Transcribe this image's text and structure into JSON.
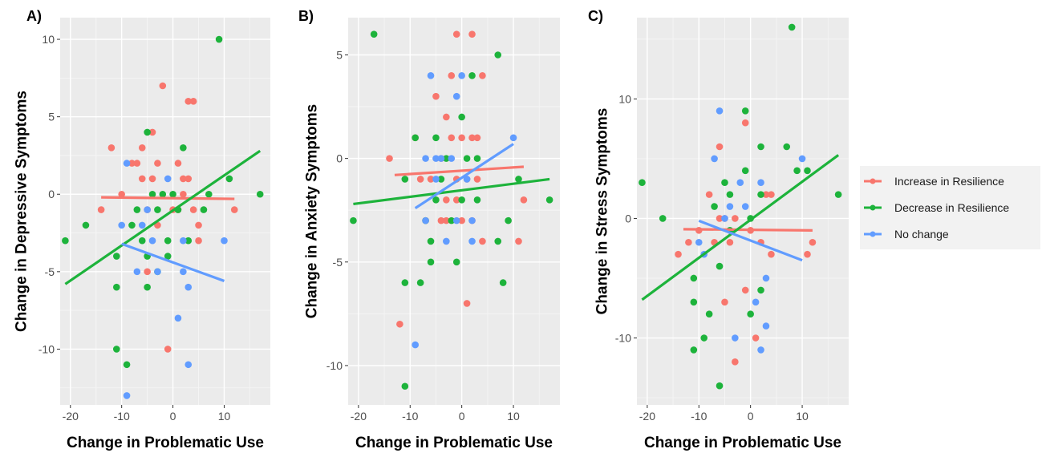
{
  "legend": {
    "entries": [
      {
        "label": "Increase in Resilience",
        "color": "#F8766D"
      },
      {
        "label": "Decrease in Resilience",
        "color": "#1DB33B"
      },
      {
        "label": "No change",
        "color": "#619CFF"
      }
    ]
  },
  "chart_data": [
    {
      "type": "scatter",
      "panel_label": "A)",
      "title": "",
      "xlabel": "Change in Problematic Use",
      "ylabel": "Change in Depressive Symptoms",
      "xlim": [
        -22,
        19
      ],
      "ylim": [
        -13.6,
        11.4
      ],
      "xticks": [
        -20,
        -10,
        0,
        10
      ],
      "yticks": [
        10,
        5,
        0,
        -5,
        -10
      ],
      "grid": true,
      "legend_position": "right",
      "series": [
        {
          "name": "Increase in Resilience",
          "color": "#F8766D",
          "points": [
            [
              -14,
              -1
            ],
            [
              -12,
              3
            ],
            [
              -10,
              0
            ],
            [
              -8,
              2
            ],
            [
              -7,
              2
            ],
            [
              -6,
              3
            ],
            [
              -6,
              1
            ],
            [
              -5,
              -1
            ],
            [
              -4,
              4
            ],
            [
              -4,
              1
            ],
            [
              -3,
              2
            ],
            [
              -2,
              7
            ],
            [
              -1,
              -10
            ],
            [
              0,
              -1
            ],
            [
              1,
              2
            ],
            [
              1,
              -1
            ],
            [
              2,
              1
            ],
            [
              2,
              0
            ],
            [
              3,
              1
            ],
            [
              3,
              6
            ],
            [
              4,
              6
            ],
            [
              4,
              -1
            ],
            [
              5,
              -2
            ],
            [
              5,
              -3
            ],
            [
              12,
              -1
            ],
            [
              -3,
              -2
            ],
            [
              -5,
              -5
            ]
          ]
        },
        {
          "name": "Decrease in Resilience",
          "color": "#1DB33B",
          "points": [
            [
              -21,
              -3
            ],
            [
              -17,
              -2
            ],
            [
              -11,
              -4
            ],
            [
              -11,
              -6
            ],
            [
              -11,
              -10
            ],
            [
              -9,
              -11
            ],
            [
              -8,
              -2
            ],
            [
              -7,
              -1
            ],
            [
              -6,
              -3
            ],
            [
              -5,
              -4
            ],
            [
              -5,
              4
            ],
            [
              -5,
              -6
            ],
            [
              -4,
              0
            ],
            [
              -3,
              -5
            ],
            [
              -3,
              -1
            ],
            [
              -1,
              -3
            ],
            [
              -1,
              -4
            ],
            [
              0,
              0
            ],
            [
              1,
              -1
            ],
            [
              2,
              3
            ],
            [
              3,
              -3
            ],
            [
              6,
              -1
            ],
            [
              7,
              0
            ],
            [
              9,
              10
            ],
            [
              11,
              1
            ],
            [
              17,
              0
            ],
            [
              -2,
              0
            ]
          ]
        },
        {
          "name": "No change",
          "color": "#619CFF",
          "points": [
            [
              -9,
              2
            ],
            [
              -10,
              -2
            ],
            [
              -9,
              -13
            ],
            [
              -7,
              -5
            ],
            [
              -6,
              -2
            ],
            [
              -5,
              -1
            ],
            [
              -4,
              -3
            ],
            [
              -3,
              -5
            ],
            [
              -1,
              1
            ],
            [
              1,
              -8
            ],
            [
              2,
              -3
            ],
            [
              2,
              -5
            ],
            [
              3,
              -6
            ],
            [
              3,
              -11
            ],
            [
              10,
              -3
            ]
          ]
        }
      ],
      "fits": [
        {
          "series": "Increase in Resilience",
          "x": [
            -14,
            12
          ],
          "y": [
            -0.2,
            -0.3
          ]
        },
        {
          "series": "Decrease in Resilience",
          "x": [
            -21,
            17
          ],
          "y": [
            -5.8,
            2.8
          ]
        },
        {
          "series": "No change",
          "x": [
            -10,
            10
          ],
          "y": [
            -3.2,
            -5.6
          ]
        }
      ]
    },
    {
      "type": "scatter",
      "panel_label": "B)",
      "title": "",
      "xlabel": "Change in Problematic Use",
      "ylabel": "Change in Anxiety Symptoms",
      "xlim": [
        -22,
        19
      ],
      "ylim": [
        -11.9,
        6.8
      ],
      "xticks": [
        -20,
        -10,
        0,
        10
      ],
      "yticks": [
        5,
        0,
        -5,
        -10
      ],
      "grid": true,
      "legend_position": "right",
      "series": [
        {
          "name": "Increase in Resilience",
          "color": "#F8766D",
          "points": [
            [
              -14,
              0
            ],
            [
              -12,
              -8
            ],
            [
              -9,
              1
            ],
            [
              -8,
              -1
            ],
            [
              -7,
              -3
            ],
            [
              -6,
              -1
            ],
            [
              -5,
              3
            ],
            [
              -4,
              -3
            ],
            [
              -4,
              0
            ],
            [
              -3,
              2
            ],
            [
              -3,
              -2
            ],
            [
              -2,
              4
            ],
            [
              -2,
              1
            ],
            [
              -1,
              -2
            ],
            [
              -1,
              -1
            ],
            [
              -1,
              6
            ],
            [
              0,
              1
            ],
            [
              0,
              -3
            ],
            [
              1,
              -7
            ],
            [
              1,
              -1
            ],
            [
              2,
              6
            ],
            [
              2,
              1
            ],
            [
              2,
              -3
            ],
            [
              3,
              1
            ],
            [
              3,
              -1
            ],
            [
              4,
              4
            ],
            [
              4,
              -4
            ],
            [
              11,
              -4
            ],
            [
              12,
              -2
            ],
            [
              -3,
              -3
            ]
          ]
        },
        {
          "name": "Decrease in Resilience",
          "color": "#1DB33B",
          "points": [
            [
              -21,
              -3
            ],
            [
              -17,
              6
            ],
            [
              -11,
              -11
            ],
            [
              -11,
              -6
            ],
            [
              -11,
              -1
            ],
            [
              -9,
              1
            ],
            [
              -8,
              -6
            ],
            [
              -7,
              -3
            ],
            [
              -6,
              -5
            ],
            [
              -6,
              -4
            ],
            [
              -5,
              1
            ],
            [
              -5,
              -2
            ],
            [
              -4,
              -1
            ],
            [
              -3,
              0
            ],
            [
              -2,
              -3
            ],
            [
              -1,
              -5
            ],
            [
              0,
              2
            ],
            [
              0,
              -2
            ],
            [
              1,
              0
            ],
            [
              2,
              4
            ],
            [
              3,
              0
            ],
            [
              3,
              -2
            ],
            [
              7,
              5
            ],
            [
              7,
              -4
            ],
            [
              8,
              -6
            ],
            [
              9,
              -3
            ],
            [
              11,
              -1
            ],
            [
              17,
              -2
            ]
          ]
        },
        {
          "name": "No change",
          "color": "#619CFF",
          "points": [
            [
              -9,
              -9
            ],
            [
              -7,
              0
            ],
            [
              -7,
              -3
            ],
            [
              -6,
              4
            ],
            [
              -5,
              0
            ],
            [
              -5,
              -1
            ],
            [
              -4,
              0
            ],
            [
              -3,
              -4
            ],
            [
              -2,
              0
            ],
            [
              -1,
              3
            ],
            [
              -1,
              -3
            ],
            [
              0,
              4
            ],
            [
              1,
              -1
            ],
            [
              2,
              -4
            ],
            [
              2,
              -3
            ],
            [
              10,
              1
            ]
          ]
        }
      ],
      "fits": [
        {
          "series": "Increase in Resilience",
          "x": [
            -13,
            12
          ],
          "y": [
            -0.8,
            -0.4
          ]
        },
        {
          "series": "Decrease in Resilience",
          "x": [
            -21,
            17
          ],
          "y": [
            -2.2,
            -1.0
          ]
        },
        {
          "series": "No change",
          "x": [
            -9,
            10
          ],
          "y": [
            -2.4,
            0.7
          ]
        }
      ]
    },
    {
      "type": "scatter",
      "panel_label": "C)",
      "title": "",
      "xlabel": "Change in Problematic Use",
      "ylabel": "Change in Stress Symptoms",
      "xlim": [
        -22,
        19
      ],
      "ylim": [
        -15.6,
        16.8
      ],
      "xticks": [
        -20,
        -10,
        0,
        10
      ],
      "yticks": [
        10,
        0,
        -10
      ],
      "grid": true,
      "legend_position": "right",
      "series": [
        {
          "name": "Increase in Resilience",
          "color": "#F8766D",
          "points": [
            [
              -14,
              -3
            ],
            [
              -12,
              -2
            ],
            [
              -10,
              -1
            ],
            [
              -8,
              2
            ],
            [
              -7,
              -2
            ],
            [
              -6,
              0
            ],
            [
              -6,
              6
            ],
            [
              -5,
              -7
            ],
            [
              -4,
              -2
            ],
            [
              -3,
              0
            ],
            [
              -3,
              -12
            ],
            [
              -1,
              8
            ],
            [
              -1,
              -6
            ],
            [
              0,
              -1
            ],
            [
              1,
              -10
            ],
            [
              2,
              -2
            ],
            [
              3,
              2
            ],
            [
              4,
              2
            ],
            [
              4,
              -3
            ],
            [
              11,
              -3
            ],
            [
              12,
              -2
            ],
            [
              -5,
              0
            ]
          ]
        },
        {
          "name": "Decrease in Resilience",
          "color": "#1DB33B",
          "points": [
            [
              -21,
              3
            ],
            [
              -17,
              0
            ],
            [
              -11,
              -5
            ],
            [
              -11,
              -7
            ],
            [
              -11,
              -11
            ],
            [
              -9,
              -10
            ],
            [
              -8,
              -8
            ],
            [
              -7,
              1
            ],
            [
              -6,
              -14
            ],
            [
              -6,
              -4
            ],
            [
              -5,
              3
            ],
            [
              -4,
              2
            ],
            [
              -4,
              -1
            ],
            [
              -1,
              9
            ],
            [
              -1,
              4
            ],
            [
              0,
              0
            ],
            [
              0,
              -8
            ],
            [
              2,
              -6
            ],
            [
              2,
              6
            ],
            [
              2,
              2
            ],
            [
              7,
              6
            ],
            [
              8,
              16
            ],
            [
              9,
              4
            ],
            [
              11,
              4
            ],
            [
              17,
              2
            ]
          ]
        },
        {
          "name": "No change",
          "color": "#619CFF",
          "points": [
            [
              -10,
              -2
            ],
            [
              -9,
              -3
            ],
            [
              -7,
              5
            ],
            [
              -6,
              9
            ],
            [
              -5,
              0
            ],
            [
              -4,
              1
            ],
            [
              -3,
              -10
            ],
            [
              -2,
              3
            ],
            [
              -1,
              1
            ],
            [
              1,
              -7
            ],
            [
              2,
              -11
            ],
            [
              2,
              3
            ],
            [
              3,
              -9
            ],
            [
              3,
              -5
            ],
            [
              10,
              5
            ]
          ]
        }
      ],
      "fits": [
        {
          "series": "Increase in Resilience",
          "x": [
            -13,
            12
          ],
          "y": [
            -0.9,
            -1.0
          ]
        },
        {
          "series": "Decrease in Resilience",
          "x": [
            -21,
            17
          ],
          "y": [
            -6.8,
            5.3
          ]
        },
        {
          "series": "No change",
          "x": [
            -10,
            10
          ],
          "y": [
            -0.2,
            -3.5
          ]
        }
      ]
    }
  ]
}
